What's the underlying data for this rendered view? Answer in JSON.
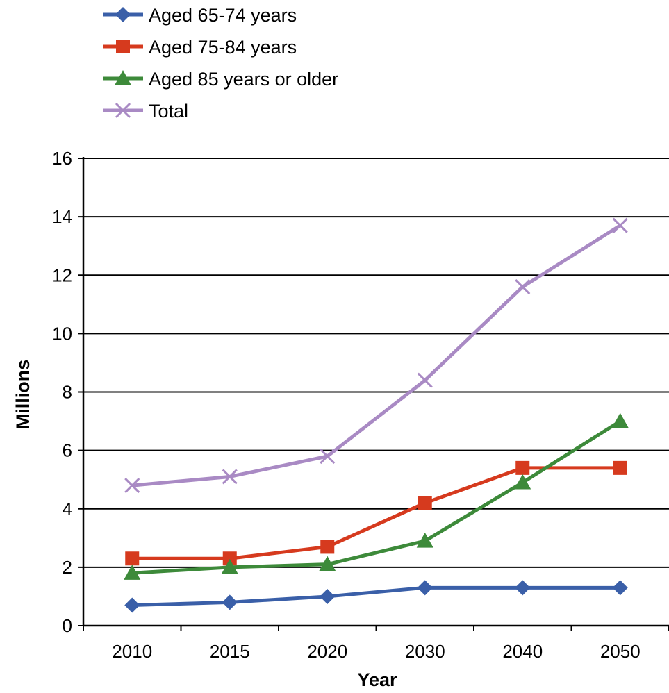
{
  "chart_data": {
    "type": "line",
    "categories": [
      "2010",
      "2015",
      "2020",
      "2030",
      "2040",
      "2050"
    ],
    "xlabel": "Year",
    "ylabel": "Millions",
    "ylim": [
      0,
      16
    ],
    "yticks": [
      "0",
      "2",
      "4",
      "6",
      "8",
      "10",
      "12",
      "14",
      "16"
    ],
    "grid": "horizontal",
    "legend_position": "top-left",
    "series": [
      {
        "name": "Aged 65-74 years",
        "values": [
          0.7,
          0.8,
          1.0,
          1.3,
          1.3,
          1.3
        ],
        "color": "#3a5fa8",
        "marker": "diamond"
      },
      {
        "name": "Aged 75-84 years",
        "values": [
          2.3,
          2.3,
          2.7,
          4.2,
          5.4,
          5.4
        ],
        "color": "#d63a1e",
        "marker": "square"
      },
      {
        "name": "Aged 85 years or older",
        "values": [
          1.8,
          2.0,
          2.1,
          2.9,
          4.9,
          7.0
        ],
        "color": "#3d8a3a",
        "marker": "triangle"
      },
      {
        "name": "Total",
        "values": [
          4.8,
          5.1,
          5.8,
          8.4,
          11.6,
          13.7
        ],
        "color": "#a98ac4",
        "marker": "x"
      }
    ]
  }
}
